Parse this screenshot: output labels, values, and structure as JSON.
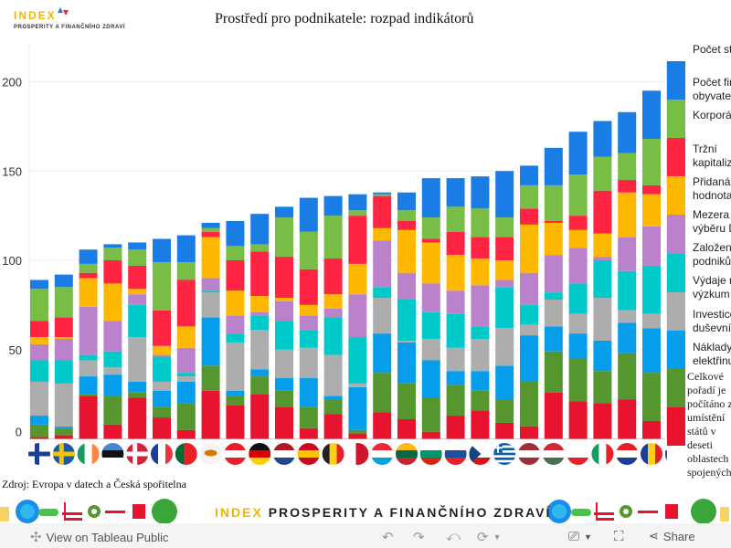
{
  "header": {
    "logo_main": "INDEX",
    "logo_sub": "PROSPERITY A FINANČNÍHO ZDRAVÍ"
  },
  "chart_data": {
    "type": "bar",
    "stacked": true,
    "title": "Prostředí pro podnikatele: rozpad indikátorů",
    "xlabel": "",
    "ylabel": "",
    "ylim": [
      0,
      215
    ],
    "yticks": [
      0,
      50,
      100,
      150,
      200
    ],
    "grid": true,
    "legend_position": "right",
    "categories": [
      "Finsko",
      "Švédsko",
      "Irsko",
      "Estonsko",
      "Dánsko",
      "Francie",
      "Portugalsko",
      "Kypr",
      "Rakousko",
      "Německo",
      "Nizozemsko",
      "Španělsko",
      "Belgie",
      "Malta",
      "Lucembursko",
      "Litva",
      "Bulharsko",
      "Slovinsko",
      "Česko",
      "Řecko",
      "Lotyšsko",
      "Maďarsko",
      "Polsko",
      "Itálie",
      "Chorvatsko",
      "Rumunsko",
      "Slovensko"
    ],
    "flags": [
      "fi",
      "se",
      "ie",
      "ee",
      "dk",
      "fr",
      "pt",
      "cy",
      "at",
      "de",
      "nl",
      "es",
      "be",
      "mt",
      "lu",
      "lt",
      "bg",
      "si",
      "cz",
      "gr",
      "lv",
      "hu",
      "pl",
      "it",
      "hr",
      "ro",
      "sk"
    ],
    "series": [
      {
        "name": "Náklady na elektřinu",
        "color": "#e8132e",
        "values": [
          1,
          2,
          24,
          8,
          23,
          12,
          5,
          27,
          19,
          25,
          18,
          6,
          14,
          3,
          15,
          11,
          4,
          13,
          16,
          9,
          7,
          26,
          21,
          20,
          22,
          10,
          17
        ]
      },
      {
        "name": "Investice do duševního vlastnictví",
        "color": "#56962e",
        "values": [
          7,
          4,
          1,
          16,
          3,
          6,
          15,
          14,
          5,
          10,
          9,
          12,
          8,
          2,
          22,
          20,
          19,
          17,
          11,
          13,
          25,
          23,
          24,
          18,
          26,
          27,
          21
        ]
      },
      {
        "name": "Výdaje na výzkum",
        "color": "#069eeb",
        "values": [
          5,
          1,
          10,
          12,
          6,
          9,
          12,
          27,
          3,
          4,
          7,
          16,
          2,
          24,
          22,
          23,
          21,
          8,
          11,
          19,
          26,
          14,
          14,
          17,
          17,
          25,
          20
        ]
      },
      {
        "name": "Založení podniků",
        "color": "#adadad",
        "values": [
          19,
          24,
          9,
          4,
          25,
          5,
          3,
          14,
          27,
          22,
          16,
          17,
          23,
          2,
          20,
          1,
          12,
          13,
          18,
          21,
          6,
          15,
          11,
          24,
          7,
          8,
          10
        ]
      },
      {
        "name": "Mezera ve výběru DPH",
        "color": "#00c9c9",
        "values": [
          12,
          13,
          3,
          9,
          18,
          14,
          2,
          1,
          5,
          8,
          16,
          10,
          21,
          26,
          6,
          23,
          15,
          19,
          7,
          23,
          11,
          4,
          17,
          21,
          22,
          27,
          24
        ]
      },
      {
        "name": "Přidaná hodnota",
        "color": "#bb82cc",
        "values": [
          9,
          12,
          27,
          17,
          6,
          1,
          14,
          7,
          10,
          2,
          11,
          8,
          5,
          24,
          26,
          15,
          16,
          13,
          23,
          4,
          18,
          21,
          20,
          2,
          19,
          22,
          25
        ]
      },
      {
        "name": "Tržní kapitalizace",
        "color": "#ffb800",
        "values": [
          4,
          1,
          16,
          21,
          3,
          5,
          12,
          23,
          14,
          9,
          2,
          6,
          8,
          17,
          7,
          24,
          23,
          20,
          15,
          11,
          27,
          18,
          10,
          13,
          25,
          18,
          26
        ]
      },
      {
        "name": "Korporátní daň",
        "color": "#ff2442",
        "values": [
          9,
          11,
          3,
          13,
          13,
          20,
          26,
          3,
          17,
          25,
          23,
          20,
          20,
          27,
          18,
          5,
          2,
          13,
          12,
          13,
          9,
          1,
          8,
          24,
          7,
          5,
          19
        ]
      },
      {
        "name": "Počet firem na obyvatele",
        "color": "#78be46",
        "values": [
          18,
          17,
          5,
          7,
          9,
          27,
          10,
          2,
          8,
          4,
          22,
          21,
          24,
          3,
          1,
          6,
          12,
          14,
          16,
          11,
          13,
          20,
          23,
          19,
          15,
          26,
          25
        ]
      },
      {
        "name": "Počet startupů",
        "color": "#1a7de6",
        "values": [
          5,
          7,
          8,
          2,
          4,
          13,
          15,
          3,
          14,
          17,
          6,
          19,
          11,
          9,
          1,
          10,
          22,
          16,
          18,
          26,
          11,
          21,
          24,
          20,
          23,
          27,
          24
        ]
      }
    ]
  },
  "legend": {
    "note": "Celkové pořadí je počítáno z umístění států v deseti oblastech spojených"
  },
  "source": "Zdroj: Evropa v datech a Česká spořitelna",
  "banner": {
    "index": "INDEX",
    "text": "PROSPERITY A FINANČNÍHO ZDRAVÍ"
  },
  "toolbar": {
    "view_label": "View on Tableau Public",
    "share_label": "Share"
  }
}
